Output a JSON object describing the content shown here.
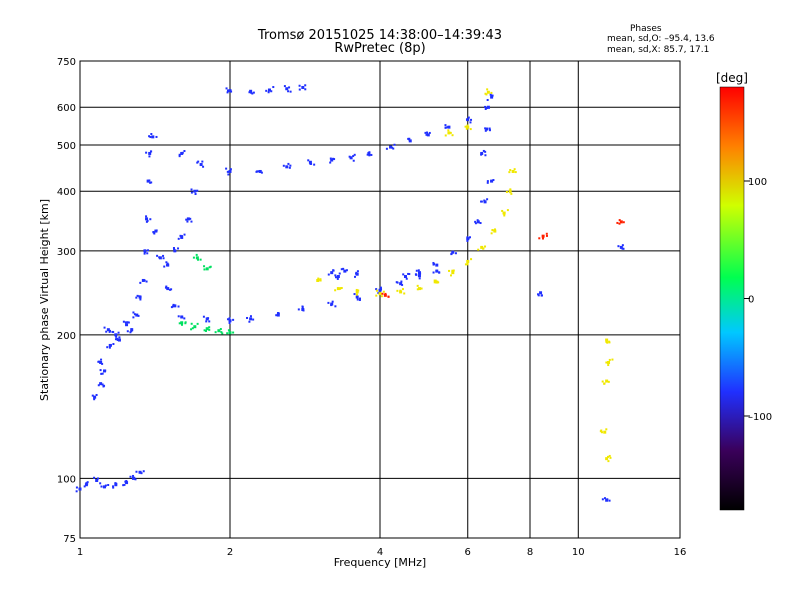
{
  "header": {
    "title_line1": "Tromsø 20151025 14:38:00–14:39:43",
    "title_line2": "RwPretec (8p)"
  },
  "phases_box": {
    "title": "Phases",
    "line1": "mean, sd,O: –95.4, 13.6",
    "line2": "mean, sd,X:  85.7, 17.1"
  },
  "colorbar": {
    "unit_label": "[deg]",
    "ticks": [
      "100",
      "0",
      "–100"
    ],
    "tick_values": [
      100,
      0,
      -100
    ],
    "range": [
      -180,
      180
    ],
    "colors": [
      "#000000",
      "#3a005a",
      "#2030ff",
      "#00c8ff",
      "#00ff50",
      "#d0ff00",
      "#ff8000",
      "#ff0000"
    ]
  },
  "chart_data": {
    "type": "scatter",
    "xlabel": "Frequency [MHz]",
    "ylabel": "Stationary phase Virtual Height [km]",
    "x_scale": "log",
    "y_scale": "log",
    "xlim": [
      1,
      16
    ],
    "ylim": [
      75,
      750
    ],
    "x_ticks": [
      1,
      2,
      4,
      6,
      8,
      10,
      16
    ],
    "x_tick_labels": [
      "1",
      "2",
      "4",
      "6",
      "8",
      "10",
      "16"
    ],
    "y_ticks": [
      75,
      100,
      200,
      300,
      400,
      500,
      600,
      750
    ],
    "y_tick_labels": [
      "75",
      "100",
      "200",
      "300",
      "400",
      "500",
      "600",
      "750"
    ],
    "grid": true,
    "series": [
      {
        "color": "#2030ff",
        "points": [
          [
            1.0,
            95
          ],
          [
            1.03,
            97
          ],
          [
            1.08,
            99
          ],
          [
            1.12,
            96
          ],
          [
            1.18,
            97
          ],
          [
            1.24,
            98
          ],
          [
            1.28,
            100
          ],
          [
            1.32,
            103
          ],
          [
            1.07,
            148
          ],
          [
            1.1,
            158
          ],
          [
            1.1,
            175
          ],
          [
            1.12,
            168
          ],
          [
            1.15,
            190
          ],
          [
            1.14,
            205
          ],
          [
            1.18,
            200
          ],
          [
            1.2,
            195
          ],
          [
            1.24,
            210
          ],
          [
            1.27,
            205
          ],
          [
            1.3,
            220
          ],
          [
            1.32,
            240
          ],
          [
            1.34,
            260
          ],
          [
            1.35,
            300
          ],
          [
            1.36,
            350
          ],
          [
            1.37,
            420
          ],
          [
            1.38,
            480
          ],
          [
            1.4,
            520
          ],
          [
            1.42,
            330
          ],
          [
            1.45,
            290
          ],
          [
            1.5,
            280
          ],
          [
            1.55,
            300
          ],
          [
            1.6,
            320
          ],
          [
            1.65,
            350
          ],
          [
            1.7,
            400
          ],
          [
            1.5,
            250
          ],
          [
            1.55,
            230
          ],
          [
            1.6,
            218
          ],
          [
            1.8,
            216
          ],
          [
            2.0,
            214
          ],
          [
            2.2,
            216
          ],
          [
            2.5,
            220
          ],
          [
            2.8,
            226
          ],
          [
            3.2,
            232
          ],
          [
            3.6,
            240
          ],
          [
            4.0,
            248
          ],
          [
            4.4,
            256
          ],
          [
            4.8,
            266
          ],
          [
            5.2,
            280
          ],
          [
            5.6,
            298
          ],
          [
            6.0,
            318
          ],
          [
            6.3,
            345
          ],
          [
            6.5,
            380
          ],
          [
            6.7,
            420
          ],
          [
            6.4,
            480
          ],
          [
            6.55,
            540
          ],
          [
            6.6,
            600
          ],
          [
            6.7,
            630
          ],
          [
            1.6,
            480
          ],
          [
            1.75,
            455
          ],
          [
            2.0,
            440
          ],
          [
            2.3,
            440
          ],
          [
            2.6,
            450
          ],
          [
            2.9,
            460
          ],
          [
            3.2,
            465
          ],
          [
            3.5,
            470
          ],
          [
            3.8,
            480
          ],
          [
            4.2,
            495
          ],
          [
            4.6,
            510
          ],
          [
            5.0,
            525
          ],
          [
            5.5,
            545
          ],
          [
            6.0,
            565
          ],
          [
            2.0,
            650
          ],
          [
            2.2,
            648
          ],
          [
            2.4,
            652
          ],
          [
            2.6,
            656
          ],
          [
            2.8,
            660
          ],
          [
            3.2,
            270
          ],
          [
            3.3,
            265
          ],
          [
            3.4,
            272
          ],
          [
            3.6,
            268
          ],
          [
            4.5,
            265
          ],
          [
            4.8,
            270
          ],
          [
            5.2,
            272
          ],
          [
            8.4,
            245
          ],
          [
            11.4,
            90
          ],
          [
            12.2,
            305
          ]
        ]
      },
      {
        "color": "#f0e800",
        "points": [
          [
            3.0,
            260
          ],
          [
            3.3,
            250
          ],
          [
            3.6,
            246
          ],
          [
            4.0,
            244
          ],
          [
            4.4,
            246
          ],
          [
            4.8,
            250
          ],
          [
            5.2,
            258
          ],
          [
            5.6,
            270
          ],
          [
            6.0,
            285
          ],
          [
            6.4,
            305
          ],
          [
            6.8,
            330
          ],
          [
            7.1,
            360
          ],
          [
            7.3,
            400
          ],
          [
            7.4,
            440
          ],
          [
            5.5,
            530
          ],
          [
            6.0,
            545
          ],
          [
            6.6,
            645
          ],
          [
            11.4,
            195
          ],
          [
            11.5,
            175
          ],
          [
            11.4,
            160
          ],
          [
            11.3,
            125
          ],
          [
            11.4,
            110
          ]
        ]
      },
      {
        "color": "#00e060",
        "points": [
          [
            1.6,
            212
          ],
          [
            1.7,
            208
          ],
          [
            1.8,
            206
          ],
          [
            1.9,
            204
          ],
          [
            2.0,
            202
          ],
          [
            1.72,
            290
          ],
          [
            1.8,
            275
          ]
        ]
      },
      {
        "color": "#ff2000",
        "points": [
          [
            12.2,
            345
          ],
          [
            8.5,
            322
          ],
          [
            4.1,
            242
          ]
        ]
      }
    ]
  }
}
